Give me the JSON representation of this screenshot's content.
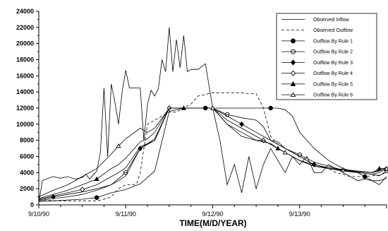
{
  "chart_data": {
    "type": "line",
    "title": "",
    "xlabel": "TIME(M/D/YEAR)",
    "ylabel": "",
    "xlim": [
      0,
      96
    ],
    "ylim": [
      0,
      24000
    ],
    "yticks": [
      0,
      2000,
      4000,
      6000,
      8000,
      10000,
      12000,
      14000,
      16000,
      18000,
      20000,
      22000,
      24000
    ],
    "xticks": [
      {
        "value": 0,
        "label": "9/10/90"
      },
      {
        "value": 24,
        "label": "9/11/90"
      },
      {
        "value": 48,
        "label": "9/12/90"
      },
      {
        "value": 72,
        "label": "9/13/90"
      }
    ],
    "grid": false,
    "legend_position": "top-right",
    "series": [
      {
        "name": "Observed Inflow",
        "marker": "none",
        "dash": "solid",
        "x": [
          0,
          1,
          2,
          4,
          6,
          8,
          10,
          12,
          13,
          14,
          15,
          16,
          17,
          18,
          19,
          20,
          21,
          22,
          23,
          24,
          25,
          26,
          27,
          28,
          29,
          30,
          31,
          32,
          33,
          34,
          35,
          36,
          37,
          38,
          39,
          40,
          41,
          42,
          44,
          46,
          48,
          50,
          52,
          54,
          56,
          58,
          60,
          62,
          64,
          66,
          68,
          70,
          72,
          74,
          76,
          78,
          80,
          82,
          84,
          86,
          88,
          90,
          92,
          94,
          96
        ],
        "y": [
          300,
          3000,
          3200,
          3500,
          3300,
          3500,
          3200,
          3400,
          3800,
          3200,
          3700,
          4200,
          6500,
          14500,
          6000,
          15000,
          12800,
          10000,
          14000,
          16700,
          14500,
          14500,
          14500,
          14500,
          8000,
          12500,
          14200,
          13500,
          14400,
          18000,
          16500,
          22000,
          16500,
          20500,
          17000,
          21000,
          16500,
          16800,
          16800,
          17500,
          12000,
          8000,
          2500,
          5000,
          1500,
          6000,
          2000,
          5000,
          7000,
          5500,
          4000,
          6000,
          5000,
          6000,
          4000,
          4000,
          5000,
          4500,
          4000,
          3500,
          3000,
          3200,
          3000,
          2500,
          3500
        ]
      },
      {
        "name": "Observed Outflow",
        "marker": "none",
        "dash": "dashed",
        "x": [
          0,
          2,
          4,
          6,
          8,
          10,
          12,
          14,
          16,
          18,
          20,
          22,
          24,
          26,
          27,
          28,
          30,
          32,
          34,
          36,
          38,
          40,
          42,
          44,
          46,
          48,
          50,
          52,
          54,
          56,
          58,
          60,
          62,
          64,
          66,
          68,
          70,
          72,
          74,
          76,
          78,
          80,
          82,
          84,
          86,
          88,
          90,
          92,
          94,
          96
        ],
        "y": [
          500,
          600,
          500,
          500,
          500,
          500,
          500,
          500,
          500,
          700,
          1000,
          2000,
          2500,
          2500,
          2600,
          4000,
          10000,
          10500,
          11000,
          11500,
          11500,
          12000,
          12500,
          13500,
          13700,
          13900,
          13900,
          13900,
          13900,
          13900,
          13800,
          13800,
          12000,
          8500,
          7500,
          7000,
          6500,
          6000,
          5500,
          5000,
          4800,
          4500,
          4000,
          3800,
          3500,
          3500,
          3500,
          3600,
          3700,
          4000
        ]
      },
      {
        "name": "Outflow By Rule 1",
        "marker": "filled-circle",
        "dash": "solid",
        "x": [
          0,
          4,
          8,
          12,
          16,
          20,
          24,
          28,
          32,
          36,
          40,
          42,
          44,
          46,
          48,
          50,
          52,
          54,
          56,
          58,
          60,
          62,
          64,
          66,
          68,
          70,
          72,
          76,
          80,
          84,
          88,
          90,
          92,
          94,
          96
        ],
        "y": [
          400,
          500,
          600,
          700,
          900,
          1500,
          1900,
          2600,
          4200,
          11600,
          12000,
          12000,
          12000,
          12000,
          12000,
          12000,
          12000,
          12000,
          12000,
          12000,
          12000,
          12000,
          12000,
          12000,
          11800,
          11000,
          9000,
          7000,
          5500,
          4500,
          4000,
          3500,
          3000,
          3000,
          3300
        ]
      },
      {
        "name": "Outflow By Rule 2",
        "marker": "open-circle",
        "dash": "solid",
        "x": [
          0,
          4,
          8,
          12,
          16,
          20,
          24,
          28,
          32,
          36,
          40,
          44,
          48,
          52,
          56,
          60,
          62,
          64,
          66,
          68,
          72,
          76,
          80,
          84,
          88,
          92,
          94,
          96
        ],
        "y": [
          500,
          800,
          1000,
          1300,
          1800,
          2500,
          4000,
          7000,
          8200,
          12000,
          12000,
          12000,
          12000,
          11200,
          10800,
          10500,
          9700,
          8000,
          7500,
          7000,
          6200,
          5300,
          4800,
          4300,
          4000,
          3800,
          3600,
          4200
        ]
      },
      {
        "name": "Outflow By Rule 3",
        "marker": "filled-diamond",
        "dash": "solid",
        "x": [
          0,
          4,
          8,
          12,
          16,
          20,
          22,
          24,
          28,
          32,
          36,
          40,
          44,
          48,
          52,
          56,
          60,
          62,
          64,
          66,
          68,
          72,
          76,
          80,
          84,
          88,
          92,
          94,
          96
        ],
        "y": [
          600,
          1000,
          1300,
          1600,
          2000,
          2500,
          3000,
          3600,
          7000,
          8000,
          12000,
          12000,
          12000,
          12000,
          11000,
          10000,
          9000,
          8500,
          8000,
          7800,
          7000,
          6000,
          5000,
          4500,
          4200,
          4000,
          3800,
          4000,
          4500
        ]
      },
      {
        "name": "Outflow By Rule 4",
        "marker": "open-diamond",
        "dash": "solid",
        "x": [
          0,
          4,
          8,
          12,
          16,
          20,
          22,
          24,
          28,
          32,
          36,
          40,
          44,
          48,
          52,
          56,
          60,
          62,
          64,
          66,
          68,
          72,
          76,
          80,
          84,
          88,
          92,
          94,
          96
        ],
        "y": [
          700,
          1100,
          1500,
          1900,
          2500,
          3500,
          4000,
          4600,
          7200,
          8000,
          12000,
          12000,
          12000,
          12000,
          10500,
          9500,
          8500,
          8000,
          7500,
          7000,
          6500,
          5500,
          4800,
          4500,
          4300,
          4100,
          4000,
          4200,
          4700
        ]
      },
      {
        "name": "Outflow By Rule 5",
        "marker": "filled-triangle",
        "dash": "solid",
        "x": [
          0,
          4,
          8,
          12,
          16,
          20,
          22,
          24,
          28,
          30,
          32,
          36,
          40,
          44,
          48,
          52,
          56,
          60,
          62,
          64,
          66,
          68,
          72,
          76,
          80,
          84,
          88,
          92,
          94,
          96
        ],
        "y": [
          800,
          1300,
          1800,
          2500,
          3200,
          4500,
          5000,
          5800,
          7800,
          8200,
          9000,
          12000,
          12000,
          12000,
          12000,
          10000,
          8500,
          8000,
          7800,
          7600,
          7000,
          6500,
          5500,
          4800,
          4500,
          4300,
          4200,
          4000,
          4500,
          4500
        ]
      },
      {
        "name": "Outflow By Rule 6",
        "marker": "open-triangle",
        "dash": "solid",
        "x": [
          0,
          4,
          8,
          12,
          16,
          20,
          22,
          24,
          28,
          30,
          32,
          36,
          40,
          44,
          48,
          50,
          52,
          56,
          60,
          62,
          64,
          66,
          68,
          72,
          76,
          80,
          84,
          88,
          92,
          94,
          96
        ],
        "y": [
          1000,
          1800,
          2500,
          3500,
          4500,
          6300,
          7300,
          8200,
          9500,
          9000,
          9500,
          12000,
          12000,
          12000,
          12000,
          11000,
          10000,
          9000,
          8000,
          8000,
          7500,
          7000,
          6500,
          5500,
          5000,
          4600,
          4400,
          4200,
          4000,
          4300,
          4500
        ]
      }
    ]
  }
}
